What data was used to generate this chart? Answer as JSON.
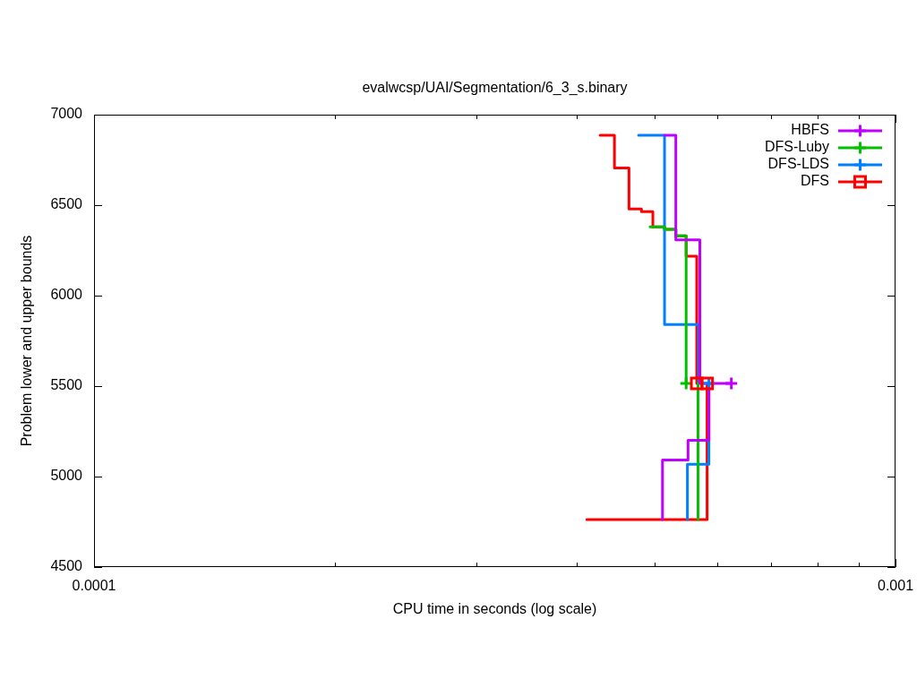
{
  "chart_data": {
    "type": "step",
    "title": "evalwcsp/UAI/Segmentation/6_3_s.binary",
    "xlabel": "CPU time in seconds (log scale)",
    "ylabel": "Problem lower and upper bounds",
    "series": [
      {
        "name": "HBFS",
        "type": "scatter",
        "color": "#c000ff",
        "marker": "cross",
        "x": [
          0.000624
        ],
        "values": [
          5515
        ]
      },
      {
        "type": "step",
        "color": "#c000ff",
        "x": [
          0.000515,
          0.000532,
          0.00057,
          0.000624
        ],
        "values": [
          6886,
          6308,
          5515,
          5515
        ]
      },
      {
        "type": "step",
        "color": "#c000ff",
        "x": [
          0.000512,
          0.000512,
          0.000551,
          0.000585
        ],
        "values": [
          4762,
          5092,
          5200,
          5515
        ]
      },
      {
        "name": "DFS-Luby",
        "type": "scatter",
        "color": "#00c000",
        "marker": "cross",
        "x": [
          0.000548
        ],
        "values": [
          5515
        ]
      },
      {
        "type": "step",
        "color": "#00c000",
        "x": [
          0.000494,
          0.000515,
          0.000532,
          0.000548
        ],
        "values": [
          6380,
          6366,
          6330,
          5515
        ]
      },
      {
        "type": "step",
        "color": "#00c000",
        "x": [
          0.000567,
          0.000567
        ],
        "values": [
          4762,
          5515
        ]
      },
      {
        "name": "DFS-LDS",
        "type": "scatter",
        "color": "#0080ff",
        "marker": "cross",
        "x": [
          0.000585
        ],
        "values": [
          5515
        ]
      },
      {
        "type": "step",
        "color": "#0080ff",
        "x": [
          0.000478,
          0.000515,
          0.000568
        ],
        "values": [
          6886,
          5840,
          5515
        ]
      },
      {
        "type": "step",
        "color": "#0080ff",
        "x": [
          0.00055,
          0.00055,
          0.000585
        ],
        "values": [
          4762,
          5068,
          5515
        ]
      },
      {
        "name": "DFS",
        "type": "scatter",
        "color": "#ff0000",
        "marker": "square",
        "x": [
          0.000565,
          0.000582
        ],
        "values": [
          5515,
          5515
        ]
      },
      {
        "type": "step",
        "color": "#ff0000",
        "x": [
          0.000428,
          0.000446,
          0.000465,
          0.000482,
          0.000498,
          0.000515,
          0.000532,
          0.000548,
          0.000565
        ],
        "values": [
          6886,
          6706,
          6479,
          6464,
          6380,
          6366,
          6330,
          6218,
          5515
        ]
      },
      {
        "type": "step",
        "color": "#ff0000",
        "x": [
          0.000412,
          0.000582
        ],
        "values": [
          4762,
          5515
        ]
      }
    ],
    "xlim": [
      0.0001,
      0.001
    ],
    "xticks": [
      0.0001,
      {
        "value": 0.0002,
        "label": null
      },
      {
        "value": 0.0003,
        "label": null
      },
      {
        "value": 0.0004,
        "label": null
      },
      {
        "value": 0.0005,
        "label": null
      },
      {
        "value": 0.0006,
        "label": null
      },
      {
        "value": 0.0007,
        "label": null
      },
      {
        "value": 0.0008,
        "label": null
      },
      {
        "value": 0.0009,
        "label": null
      },
      0.001
    ],
    "ylim": [
      4500,
      7000
    ],
    "yticks": [
      4500,
      5000,
      5500,
      6000,
      6500,
      7000
    ],
    "log": "x",
    "legend": "top right"
  }
}
